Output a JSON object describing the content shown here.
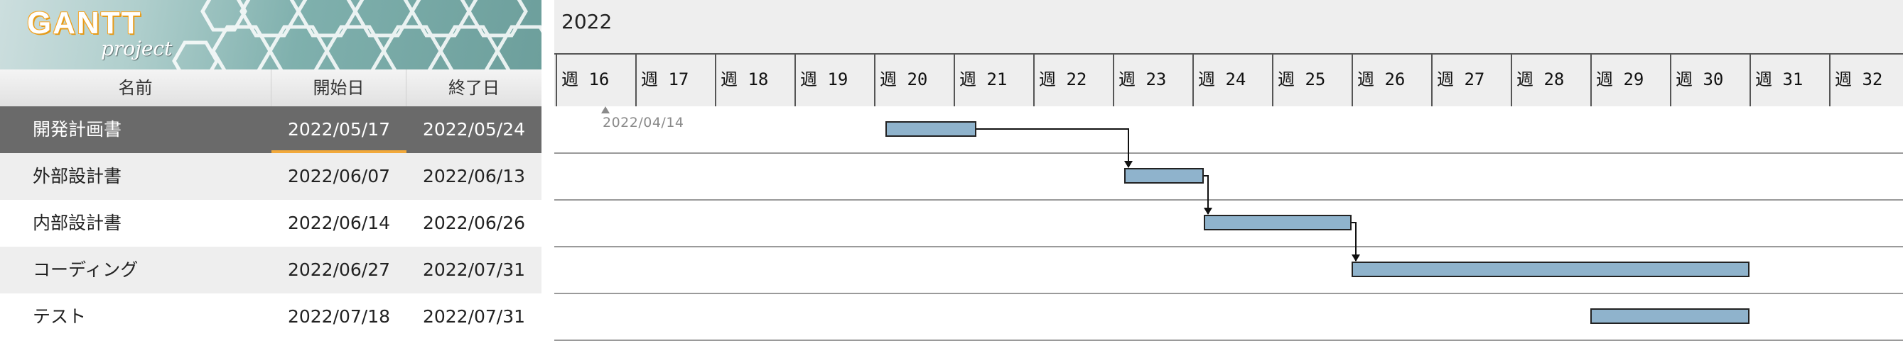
{
  "logo": {
    "main": "GANTT",
    "sub": "project"
  },
  "table": {
    "headers": {
      "name": "名前",
      "start": "開始日",
      "end": "終了日"
    },
    "rows": [
      {
        "name": "開発計画書",
        "start": "2022/05/17",
        "end": "2022/05/24"
      },
      {
        "name": "外部設計書",
        "start": "2022/06/07",
        "end": "2022/06/13"
      },
      {
        "name": "内部設計書",
        "start": "2022/06/14",
        "end": "2022/06/26"
      },
      {
        "name": "コーディング",
        "start": "2022/06/27",
        "end": "2022/07/31"
      },
      {
        "name": "テスト",
        "start": "2022/07/18",
        "end": "2022/07/31"
      }
    ]
  },
  "timeline": {
    "year": "2022",
    "weeks": [
      "週 16",
      "週 17",
      "週 18",
      "週 19",
      "週 20",
      "週 21",
      "週 22",
      "週 23",
      "週 24",
      "週 25",
      "週 26",
      "週 27",
      "週 28",
      "週 29",
      "週 30",
      "週 31",
      "週 32"
    ],
    "today_label": "2022/04/14"
  },
  "colors": {
    "bar": "#8fb3cc",
    "selected_row": "#6a6a6a",
    "accent": "#f2a93b"
  }
}
